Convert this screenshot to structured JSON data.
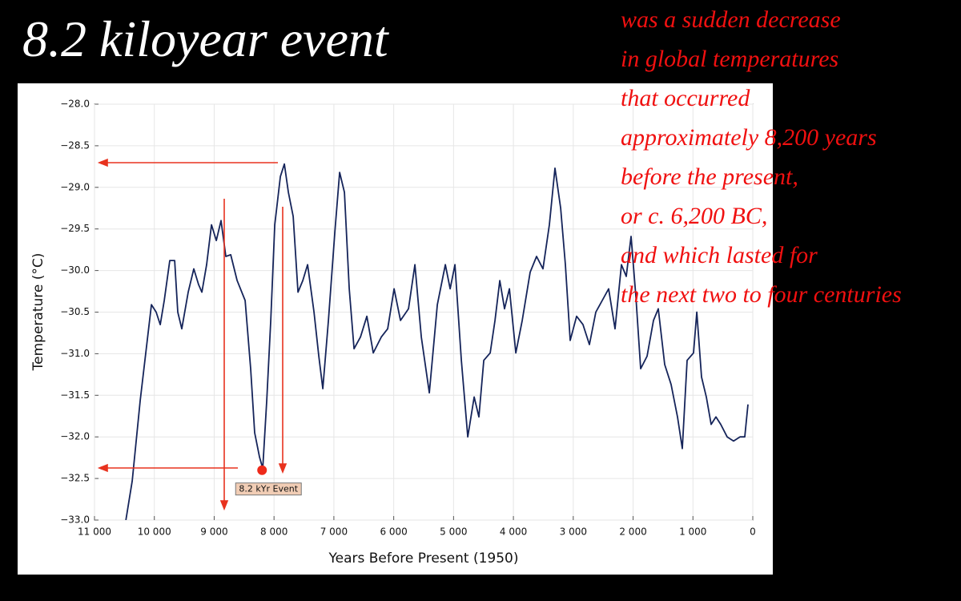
{
  "title": "8.2 kiloyear event",
  "description": [
    "was a sudden decrease",
    "in global temperatures",
    "that occurred",
    "approximately 8,200 years",
    "before the present,",
    "or c. 6,200 BC,",
    "and which lasted for",
    "the next two to four centuries"
  ],
  "chart_data": {
    "type": "line",
    "xlabel": "Years Before Present (1950)",
    "ylabel": "Temperature (°C)",
    "color": "#15245a",
    "x": [
      10476,
      10370,
      10236,
      10049,
      9969,
      9902,
      9835,
      9742,
      9661,
      9608,
      9541,
      9434,
      9340,
      9260,
      9206,
      9126,
      9045,
      8965,
      8885,
      8805,
      8724,
      8617,
      8483,
      8390,
      8323,
      8243,
      8189,
      8122,
      8055,
      7988,
      7894,
      7827,
      7760,
      7680,
      7600,
      7520,
      7439,
      7332,
      7252,
      7185,
      7091,
      6984,
      6904,
      6824,
      6743,
      6663,
      6556,
      6449,
      6342,
      6208,
      6101,
      5994,
      5887,
      5753,
      5646,
      5539,
      5405,
      5271,
      5137,
      5057,
      4977,
      4870,
      4763,
      4656,
      4576,
      4495,
      4388,
      4308,
      4228,
      4148,
      4067,
      3960,
      3853,
      3720,
      3613,
      3506,
      3399,
      3305,
      3211,
      3131,
      3051,
      2944,
      2837,
      2730,
      2623,
      2516,
      2409,
      2302,
      2195,
      2114,
      2034,
      1954,
      1873,
      1766,
      1659,
      1579,
      1472,
      1365,
      1258,
      1177,
      1097,
      990,
      936,
      856,
      776,
      696,
      615,
      535,
      428,
      321,
      214,
      134,
      80
    ],
    "values": [
      -33.0,
      -32.53,
      -31.56,
      -30.41,
      -30.5,
      -30.65,
      -30.36,
      -29.88,
      -29.88,
      -30.5,
      -30.7,
      -30.26,
      -29.98,
      -30.17,
      -30.26,
      -29.93,
      -29.45,
      -29.64,
      -29.4,
      -29.83,
      -29.81,
      -30.12,
      -30.36,
      -31.18,
      -31.95,
      -32.24,
      -32.38,
      -31.56,
      -30.6,
      -29.45,
      -28.87,
      -28.72,
      -29.06,
      -29.35,
      -30.26,
      -30.12,
      -29.93,
      -30.5,
      -31.03,
      -31.42,
      -30.6,
      -29.54,
      -28.82,
      -29.06,
      -30.22,
      -30.94,
      -30.8,
      -30.55,
      -30.99,
      -30.8,
      -30.7,
      -30.22,
      -30.6,
      -30.46,
      -29.93,
      -30.8,
      -31.47,
      -30.41,
      -29.93,
      -30.22,
      -29.93,
      -31.08,
      -32.0,
      -31.52,
      -31.76,
      -31.08,
      -30.99,
      -30.6,
      -30.12,
      -30.46,
      -30.22,
      -30.99,
      -30.6,
      -30.02,
      -29.83,
      -29.98,
      -29.45,
      -28.77,
      -29.25,
      -29.93,
      -30.84,
      -30.55,
      -30.65,
      -30.89,
      -30.5,
      -30.36,
      -30.22,
      -30.7,
      -29.93,
      -30.07,
      -29.59,
      -30.31,
      -31.18,
      -31.03,
      -30.6,
      -30.46,
      -31.13,
      -31.37,
      -31.76,
      -32.14,
      -31.08,
      -30.99,
      -30.5,
      -31.28,
      -31.52,
      -31.85,
      -31.76,
      -31.85,
      -32.0,
      -32.05,
      -32.0,
      -32.0,
      -31.61
    ],
    "xlim": [
      11000,
      0
    ],
    "ylim": [
      -33.0,
      -28.0
    ],
    "xticks": [
      {
        "value": 11000,
        "label": "11 000"
      },
      {
        "value": 10000,
        "label": "10 000"
      },
      {
        "value": 9000,
        "label": "9 000"
      },
      {
        "value": 8000,
        "label": "8 000"
      },
      {
        "value": 7000,
        "label": "7 000"
      },
      {
        "value": 6000,
        "label": "6 000"
      },
      {
        "value": 5000,
        "label": "5 000"
      },
      {
        "value": 4000,
        "label": "4 000"
      },
      {
        "value": 3000,
        "label": "3 000"
      },
      {
        "value": 2000,
        "label": "2 000"
      },
      {
        "value": 1000,
        "label": "1 000"
      },
      0
    ],
    "yticks": [
      {
        "value": -33.0,
        "label": "−33.0"
      },
      {
        "value": -32.5,
        "label": "−32.5"
      },
      {
        "value": -32.0,
        "label": "−32.0"
      },
      {
        "value": -31.5,
        "label": "−31.5"
      },
      {
        "value": -31.0,
        "label": "−31.0"
      },
      {
        "value": -30.5,
        "label": "−30.5"
      },
      {
        "value": -30.0,
        "label": "−30.0"
      },
      {
        "value": -29.5,
        "label": "−29.5"
      },
      {
        "value": -29.0,
        "label": "−29.0"
      },
      {
        "value": -28.5,
        "label": "−28.5"
      },
      {
        "value": -28.0,
        "label": "−28.0"
      }
    ],
    "grid": true,
    "event": {
      "x": 8200,
      "y": -32.4,
      "label": "8.2 kYr Event",
      "color": "#ee2a1a"
    }
  }
}
